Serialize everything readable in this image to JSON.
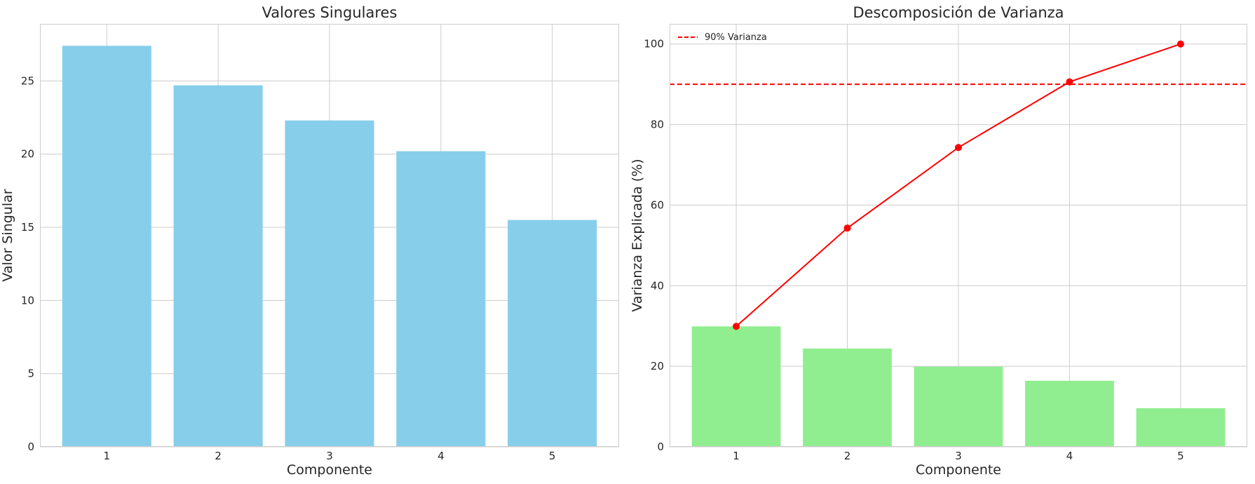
{
  "chart_data": [
    {
      "type": "bar",
      "title": "Valores Singulares",
      "xlabel": "Componente",
      "ylabel": "Valor Singular",
      "categories": [
        "1",
        "2",
        "3",
        "4",
        "5"
      ],
      "values": [
        27.4,
        24.7,
        22.3,
        20.2,
        15.5
      ],
      "ylim": [
        0,
        28.9
      ],
      "yticks": [
        0,
        5,
        10,
        15,
        20,
        25
      ],
      "grid": true,
      "colors": {
        "bar": "#87ceeb"
      }
    },
    {
      "type": "bar",
      "title": "Descomposición de Varianza",
      "xlabel": "Componente",
      "ylabel": "Varianza Explicada (%)",
      "categories": [
        "1",
        "2",
        "3",
        "4",
        "5"
      ],
      "values": [
        29.9,
        24.4,
        19.9,
        16.4,
        9.6
      ],
      "line": {
        "values": [
          29.9,
          54.3,
          74.3,
          90.6,
          100.0
        ],
        "color": "#ff0000"
      },
      "hline": {
        "value": 90,
        "label": "90% Varianza",
        "color": "#ff0000",
        "style": "dashed"
      },
      "ylim": [
        0,
        105
      ],
      "yticks": [
        0,
        20,
        40,
        60,
        80,
        100
      ],
      "grid": true,
      "legend": "top-left",
      "colors": {
        "bar": "#90ee90"
      }
    }
  ]
}
